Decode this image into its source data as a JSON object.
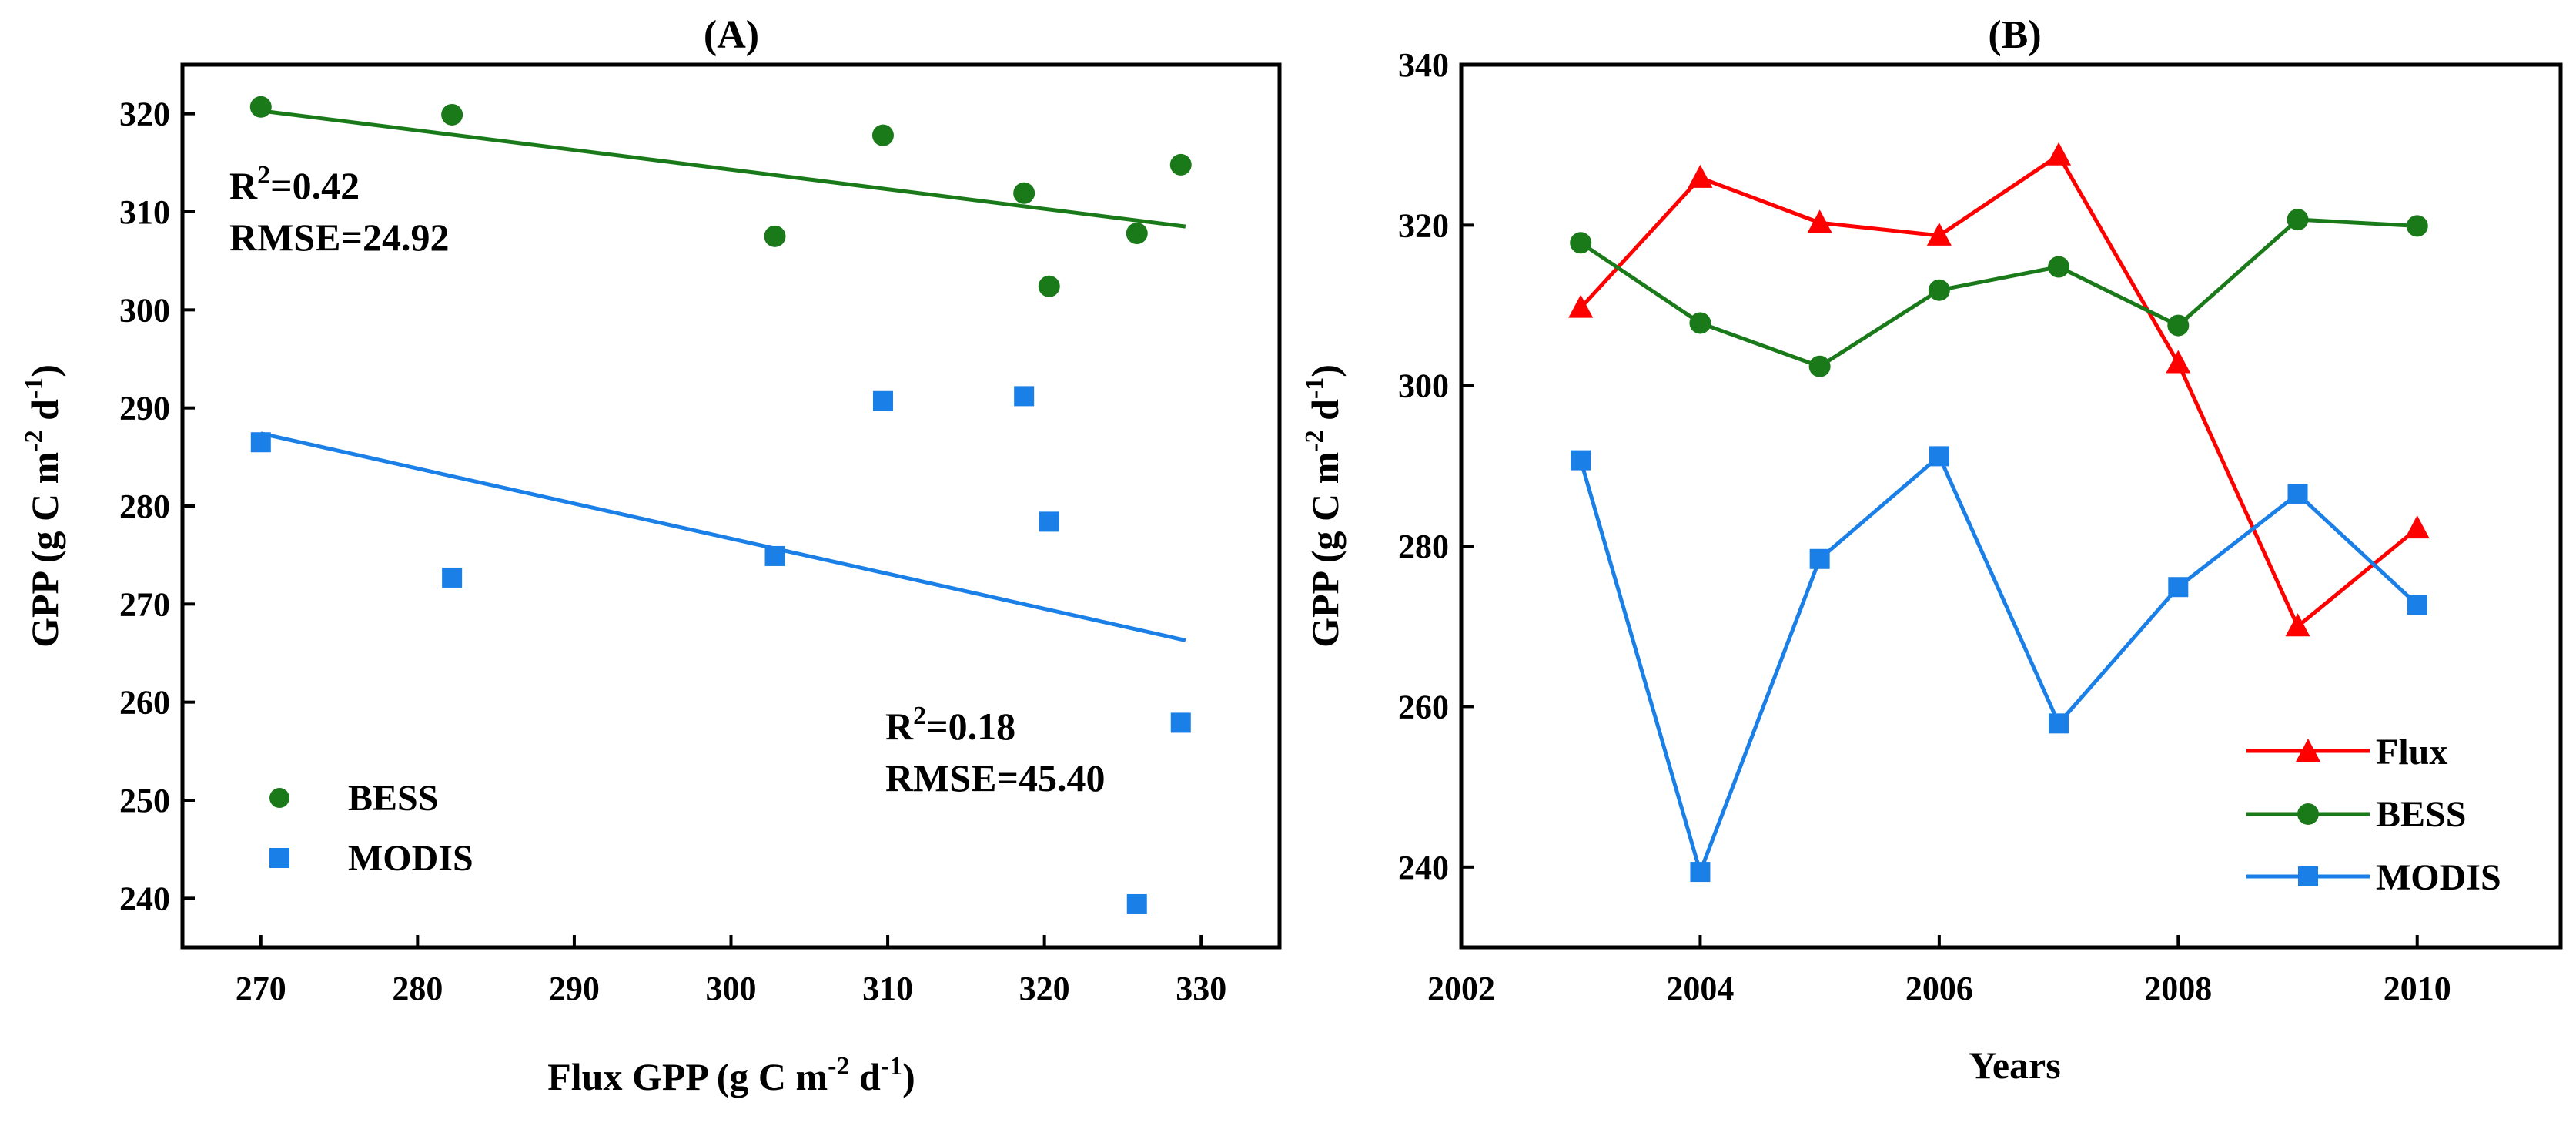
{
  "chart_data": [
    {
      "panel": "A",
      "type": "scatter",
      "title": "(A)",
      "xlabel": "Flux GPP (g C m-2 d-1)",
      "ylabel": "GPP (g C m-2 d-1)",
      "xlim": [
        265,
        335
      ],
      "ylim": [
        235,
        325
      ],
      "xticks": [
        270,
        280,
        290,
        300,
        310,
        320,
        330
      ],
      "yticks": [
        240,
        250,
        260,
        270,
        280,
        290,
        300,
        310,
        320
      ],
      "series": [
        {
          "name": "BESS",
          "marker": "circle",
          "color": "#1a7a1a",
          "x": [
            270.0,
            282.2,
            302.8,
            309.7,
            318.7,
            320.3,
            325.9,
            328.7
          ],
          "y": [
            320.7,
            319.9,
            307.5,
            317.8,
            311.9,
            302.4,
            307.8,
            314.8
          ],
          "fit": {
            "x": [
              270,
              329
            ],
            "y": [
              320.3,
              308.5
            ]
          },
          "stats": {
            "r2": "0.42",
            "rmse": "RMSE=24.92"
          }
        },
        {
          "name": "MODIS",
          "marker": "square",
          "color": "#1a7fe6",
          "x": [
            270.0,
            282.2,
            302.8,
            309.7,
            318.7,
            320.3,
            325.9,
            328.7
          ],
          "y": [
            286.5,
            272.7,
            274.9,
            290.7,
            291.2,
            278.4,
            239.4,
            257.9
          ],
          "fit": {
            "x": [
              270,
              329
            ],
            "y": [
              287.4,
              266.3
            ]
          },
          "stats": {
            "r2": "0.18",
            "rmse": "RMSE=45.40"
          }
        }
      ],
      "legend": "bottom-left",
      "grid": false
    },
    {
      "panel": "B",
      "type": "line",
      "title": "(B)",
      "xlabel": "Years",
      "ylabel": "GPP (g C m-2 d-1)",
      "xlim": [
        2002,
        2011.2
      ],
      "ylim": [
        230,
        340
      ],
      "xticks": [
        2002,
        2004,
        2006,
        2008,
        2010
      ],
      "yticks": [
        240,
        260,
        280,
        300,
        320,
        340
      ],
      "x": [
        2003,
        2004,
        2005,
        2006,
        2007,
        2008,
        2009,
        2010
      ],
      "series": [
        {
          "name": "Flux",
          "marker": "triangle",
          "color": "#ff0000",
          "values": [
            309.7,
            325.9,
            320.3,
            318.7,
            328.7,
            302.8,
            270.0,
            282.2
          ]
        },
        {
          "name": "BESS",
          "marker": "circle",
          "color": "#1a7a1a",
          "values": [
            317.8,
            307.8,
            302.4,
            311.9,
            314.8,
            307.5,
            320.7,
            319.9
          ]
        },
        {
          "name": "MODIS",
          "marker": "square",
          "color": "#1a7fe6",
          "values": [
            290.7,
            239.4,
            278.4,
            291.2,
            257.9,
            274.9,
            286.5,
            272.7
          ]
        }
      ],
      "legend": "bottom-right",
      "grid": false
    }
  ],
  "labels": {
    "gpp_prefix": "GPP (g C m",
    "flux_prefix": "Flux GPP (g C m",
    "exp_neg2": "-2",
    "d_part": " d",
    "exp_neg1": "-1",
    "close_paren": ")",
    "r2_prefix": "R",
    "r2_sup": "2",
    "r2_eq": "="
  }
}
